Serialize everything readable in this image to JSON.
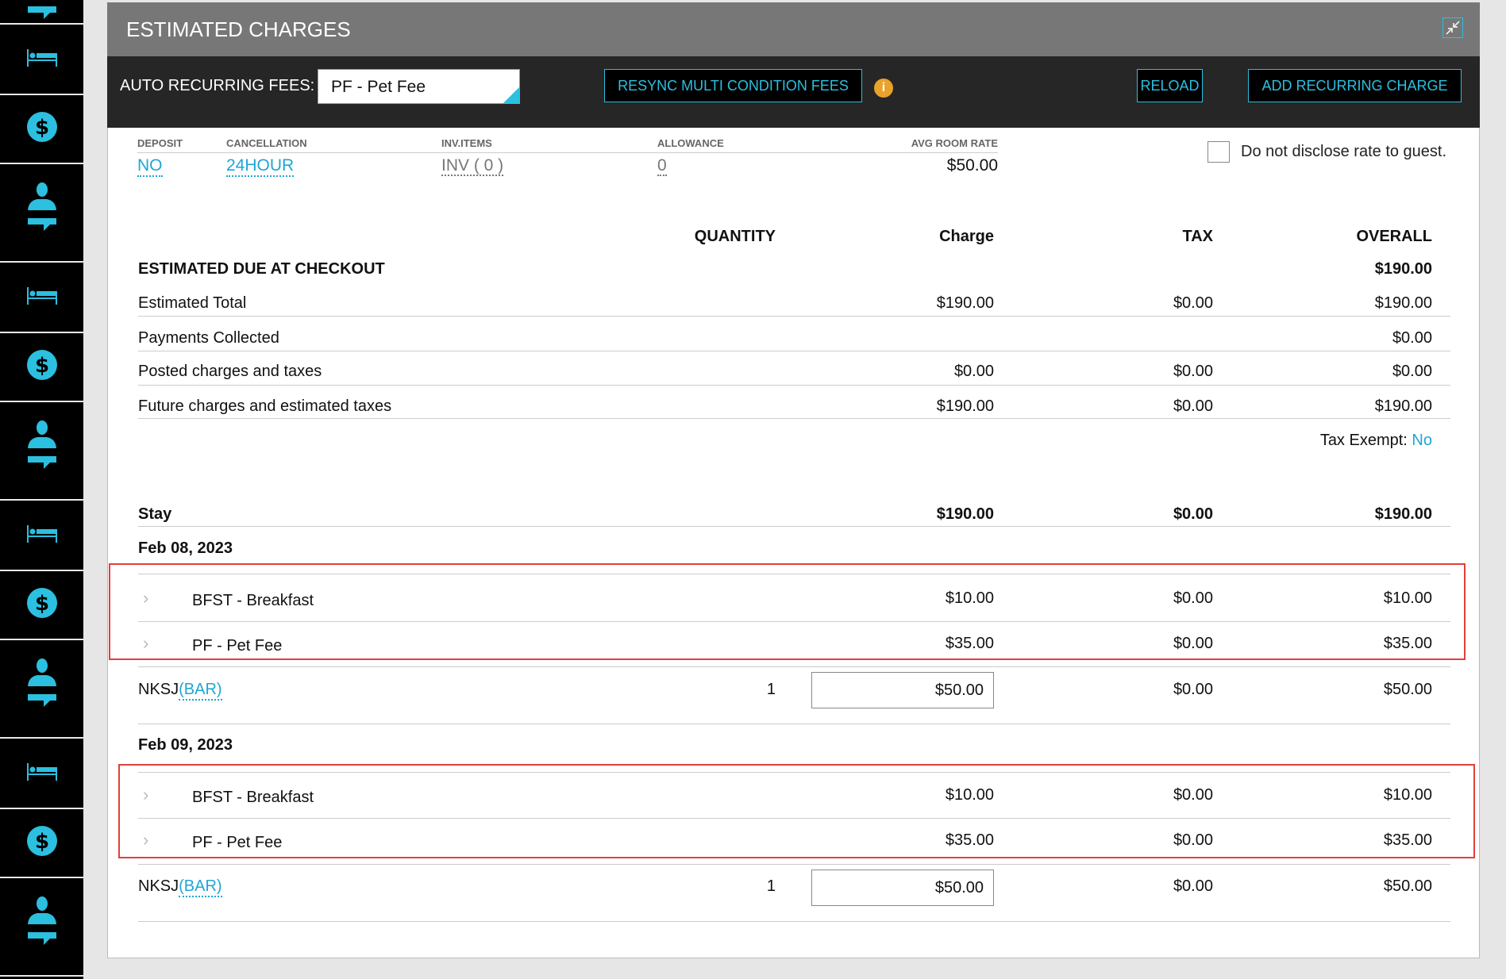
{
  "sidebar": {
    "icon_color": "#2bbfe0",
    "items": [
      "person-chat-icon",
      "bed-icon",
      "dollar-icon",
      "person-chat-icon",
      "bed-icon",
      "dollar-icon",
      "person-chat-icon",
      "bed-icon",
      "dollar-icon",
      "person-chat-icon",
      "bed-icon",
      "dollar-icon",
      "person-chat-icon"
    ]
  },
  "panel": {
    "title": "ESTIMATED CHARGES",
    "auto_recurring_label": "AUTO RECURRING FEES:",
    "auto_recurring_value": "PF - Pet Fee",
    "resync_label": "RESYNC MULTI CONDITION FEES",
    "info_glyph": "i",
    "reload_label": "RELOAD",
    "add_recurring_label": "ADD RECURRING CHARGE"
  },
  "info": {
    "deposit": {
      "label": "DEPOSIT",
      "value": "NO"
    },
    "cancellation": {
      "label": "CANCELLATION",
      "value": "24HOUR"
    },
    "inv_items": {
      "label": "INV.ITEMS",
      "value": "INV ( 0 )"
    },
    "allowance": {
      "label": "ALLOWANCE",
      "value": "0"
    },
    "avg_room_rate": {
      "label": "AVG ROOM RATE",
      "value": "$50.00"
    },
    "disclose_label": "Do not disclose rate to guest.",
    "disclose_checked": false
  },
  "summary": {
    "headers": {
      "quantity": "QUANTITY",
      "charge": "Charge",
      "tax": "TAX",
      "overall": "OVERALL"
    },
    "due": {
      "label": "ESTIMATED DUE AT CHECKOUT",
      "overall": "$190.00"
    },
    "rows": [
      {
        "label": "Estimated Total",
        "charge": "$190.00",
        "tax": "$0.00",
        "overall": "$190.00"
      },
      {
        "label": "Payments Collected",
        "charge": "",
        "tax": "",
        "overall": "$0.00"
      },
      {
        "label": "Posted charges and taxes",
        "charge": "$0.00",
        "tax": "$0.00",
        "overall": "$0.00"
      },
      {
        "label": "Future charges and estimated taxes",
        "charge": "$190.00",
        "tax": "$0.00",
        "overall": "$190.00"
      }
    ],
    "tax_exempt_label": "Tax Exempt:",
    "tax_exempt_value": "No"
  },
  "stay": {
    "label": "Stay",
    "charge": "$190.00",
    "tax": "$0.00",
    "overall": "$190.00"
  },
  "days": [
    {
      "date": "Feb 08, 2023",
      "items": [
        {
          "name": "BFST - Breakfast",
          "charge": "$10.00",
          "tax": "$0.00",
          "overall": "$10.00"
        },
        {
          "name": "PF - Pet Fee",
          "charge": "$35.00",
          "tax": "$0.00",
          "overall": "$35.00"
        }
      ],
      "room": {
        "code": "NKSJ",
        "rate_plan": "(BAR)",
        "quantity": "1",
        "charge": "$50.00",
        "tax": "$0.00",
        "overall": "$50.00"
      }
    },
    {
      "date": "Feb 09, 2023",
      "items": [
        {
          "name": "BFST - Breakfast",
          "charge": "$10.00",
          "tax": "$0.00",
          "overall": "$10.00"
        },
        {
          "name": "PF - Pet Fee",
          "charge": "$35.00",
          "tax": "$0.00",
          "overall": "$35.00"
        }
      ],
      "room": {
        "code": "NKSJ",
        "rate_plan": "(BAR)",
        "quantity": "1",
        "charge": "$50.00",
        "tax": "$0.00",
        "overall": "$50.00"
      }
    }
  ],
  "highlight_color": "#e0403c"
}
